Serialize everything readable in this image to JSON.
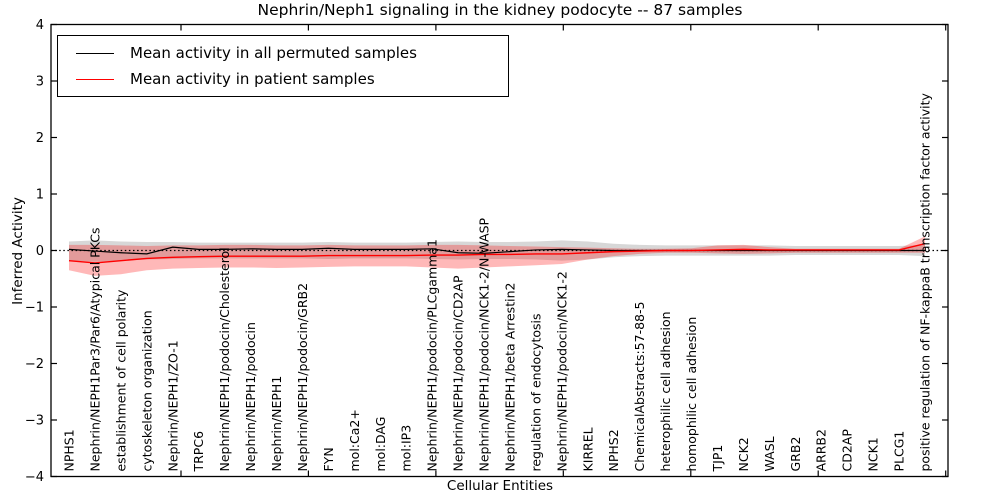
{
  "title": "Nephrin/Neph1 signaling in the kidney podocyte -- 87 samples",
  "axes": {
    "ylabel": "Inferred Activity",
    "xlabel": "Cellular Entities",
    "yticks": [
      "4",
      "3",
      "2",
      "1",
      "0",
      "−1",
      "−2",
      "−3",
      "−4"
    ],
    "ylim": [
      -4,
      4
    ]
  },
  "legend": {
    "items": [
      {
        "label": "Mean activity in all permuted samples",
        "color": "#000000"
      },
      {
        "label": "Mean activity in patient samples",
        "color": "#ff0000"
      }
    ]
  },
  "colors": {
    "permuted_line": "#000000",
    "patient_line": "#ff0000",
    "permuted_band": "rgba(140,140,140,0.35)",
    "patient_band": "rgba(255,0,0,0.28)",
    "zero_line": "#000000"
  },
  "chart_data": {
    "type": "line",
    "title": "Nephrin/Neph1 signaling in the kidney podocyte -- 87 samples",
    "xlabel": "Cellular Entities",
    "ylabel": "Inferred Activity",
    "ylim": [
      -4,
      4
    ],
    "grid": false,
    "legend_position": "upper left",
    "zero_line": 0,
    "categories": [
      "NPHS1",
      "Nephrin/NEPH1Par3/Par6/Atypical PKCs",
      "establishment of cell polarity",
      "cytoskeleton organization",
      "Nephrin/NEPH1/ZO-1",
      "TRPC6",
      "Nephrin/NEPH1/podocin/Cholesterol",
      "Nephrin/NEPH1/podocin",
      "Nephrin/NEPH1",
      "Nephrin/NEPH1/podocin/GRB2",
      "FYN",
      "mol:Ca2+",
      "mol:DAG",
      "mol:IP3",
      "Nephrin/NEPH1/podocin/PLCgamma1",
      "Nephrin/NEPH1/podocin/CD2AP",
      "Nephrin/NEPH1/podocin/NCK1-2/N-WASP",
      "Nephrin/NEPH1/beta Arrestin2",
      "regulation of endocytosis",
      "Nephrin/NEPH1/podocin/NCK1-2",
      "KIRREL",
      "NPHS2",
      "ChemicalAbstracts:57-88-5",
      "heterophilic cell adhesion",
      "homophilic cell adhesion",
      "TJP1",
      "NCK2",
      "WASL",
      "GRB2",
      "ARRB2",
      "CD2AP",
      "NCK1",
      "PLCG1",
      "positive regulation of NF-kappaB transcription factor activity"
    ],
    "series": [
      {
        "name": "Mean activity in all permuted samples",
        "color": "#000000",
        "values": [
          0.02,
          -0.01,
          -0.04,
          -0.06,
          0.06,
          0.02,
          0.02,
          0.03,
          0.02,
          0.02,
          0.04,
          0.02,
          0.02,
          0.02,
          0.03,
          -0.04,
          -0.05,
          -0.02,
          0.01,
          0.02,
          0.01,
          0.0,
          0.0,
          0.0,
          0.0,
          0.0,
          0.0,
          0.0,
          0.0,
          0.0,
          0.0,
          0.0,
          0.0,
          0.0
        ]
      },
      {
        "name": "Mean activity in patient samples",
        "color": "#ff0000",
        "values": [
          -0.18,
          -0.22,
          -0.18,
          -0.14,
          -0.12,
          -0.11,
          -0.1,
          -0.1,
          -0.1,
          -0.1,
          -0.09,
          -0.09,
          -0.09,
          -0.09,
          -0.08,
          -0.08,
          -0.07,
          -0.07,
          -0.06,
          -0.06,
          -0.04,
          -0.02,
          -0.01,
          0.0,
          0.0,
          0.01,
          0.02,
          0.01,
          0.01,
          0.01,
          0.01,
          0.01,
          0.01,
          0.12
        ]
      }
    ],
    "bands": [
      {
        "name": "permuted-sample-range",
        "color": "rgba(140,140,140,0.35)",
        "upper": [
          0.16,
          0.18,
          0.16,
          0.15,
          0.15,
          0.14,
          0.14,
          0.14,
          0.14,
          0.14,
          0.15,
          0.14,
          0.14,
          0.14,
          0.15,
          0.16,
          0.15,
          0.15,
          0.16,
          0.18,
          0.16,
          0.12,
          0.1,
          0.09,
          0.09,
          0.09,
          0.09,
          0.09,
          0.08,
          0.08,
          0.08,
          0.08,
          0.08,
          0.1
        ],
        "lower": [
          -0.18,
          -0.2,
          -0.18,
          -0.16,
          -0.15,
          -0.14,
          -0.14,
          -0.14,
          -0.14,
          -0.14,
          -0.15,
          -0.14,
          -0.14,
          -0.14,
          -0.15,
          -0.16,
          -0.15,
          -0.15,
          -0.16,
          -0.18,
          -0.16,
          -0.12,
          -0.1,
          -0.09,
          -0.09,
          -0.09,
          -0.09,
          -0.09,
          -0.08,
          -0.08,
          -0.08,
          -0.08,
          -0.08,
          -0.1
        ]
      },
      {
        "name": "patient-sample-range",
        "color": "rgba(255,0,0,0.28)",
        "upper": [
          0.1,
          0.1,
          0.09,
          0.08,
          0.09,
          0.09,
          0.1,
          0.1,
          0.09,
          0.09,
          0.1,
          0.09,
          0.09,
          0.09,
          0.1,
          0.1,
          0.09,
          0.08,
          0.07,
          0.06,
          0.05,
          0.04,
          0.03,
          0.03,
          0.04,
          0.09,
          0.1,
          0.06,
          0.03,
          0.03,
          0.03,
          0.03,
          0.03,
          0.25
        ],
        "lower": [
          -0.35,
          -0.45,
          -0.42,
          -0.35,
          -0.32,
          -0.31,
          -0.3,
          -0.3,
          -0.31,
          -0.3,
          -0.29,
          -0.28,
          -0.28,
          -0.28,
          -0.3,
          -0.32,
          -0.3,
          -0.28,
          -0.26,
          -0.24,
          -0.16,
          -0.1,
          -0.06,
          -0.04,
          -0.04,
          -0.05,
          -0.06,
          -0.05,
          -0.04,
          -0.04,
          -0.04,
          -0.04,
          -0.04,
          -0.04
        ]
      }
    ]
  }
}
